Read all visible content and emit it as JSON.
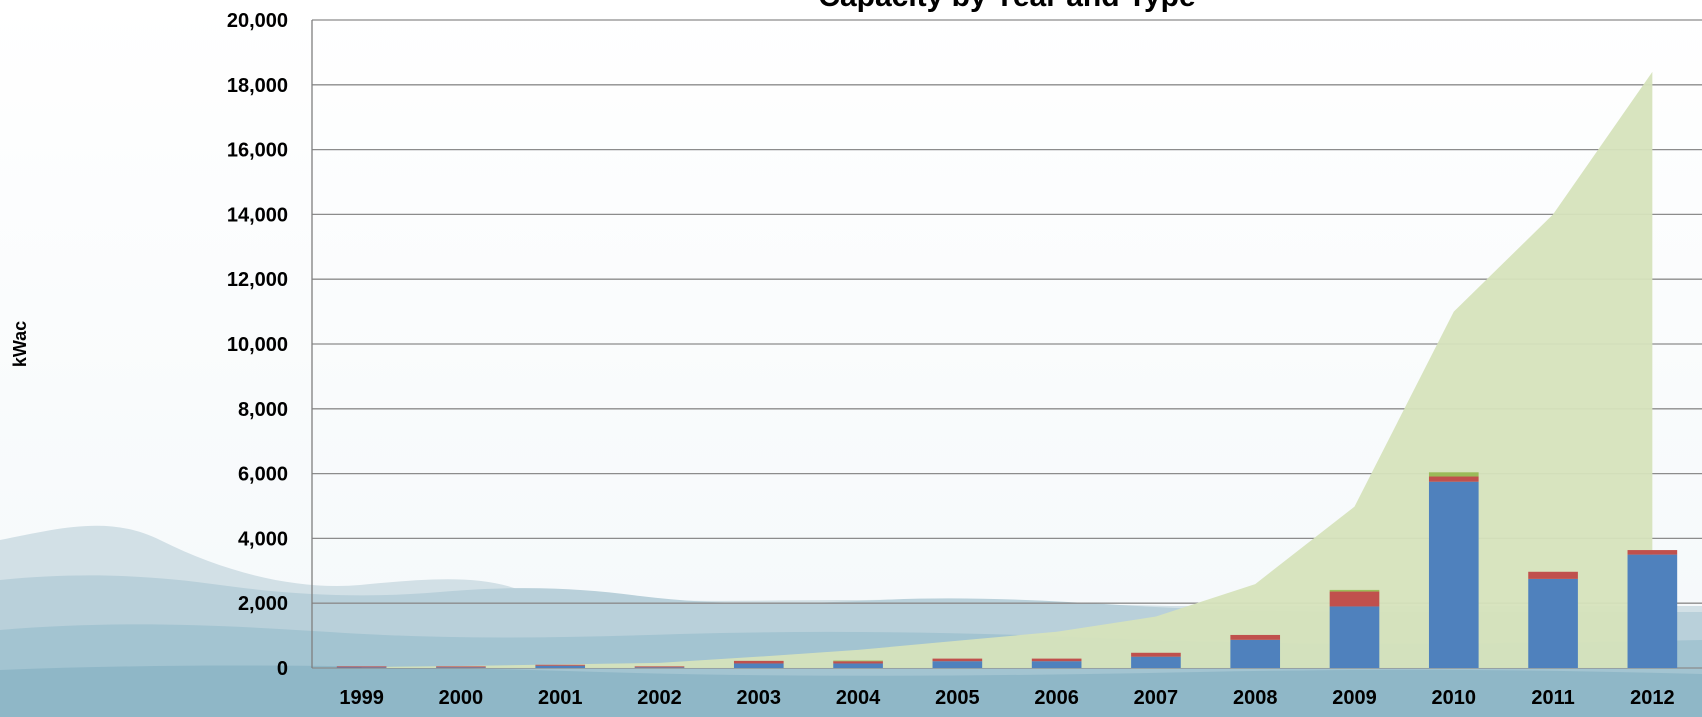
{
  "chart_data": {
    "type": "bar",
    "title": "Capacity by Year and Type",
    "xlabel": "",
    "ylabel": "kWac",
    "categories": [
      "1999",
      "2000",
      "2001",
      "2002",
      "2003",
      "2004",
      "2005",
      "2006",
      "2007",
      "2008",
      "2009",
      "2010",
      "2011",
      "2012"
    ],
    "y_ticks": [
      "0",
      "2,000",
      "4,000",
      "6,000",
      "8,000",
      "10,000",
      "12,000",
      "14,000",
      "16,000",
      "18,000",
      "20,000"
    ],
    "ylim": [
      0,
      20000
    ],
    "grid": true,
    "legend": "none",
    "series": [
      {
        "type": "area",
        "values": [
          30,
          60,
          110,
          160,
          350,
          560,
          840,
          1120,
          1590,
          2590,
          4980,
          11000,
          14000,
          18400
        ],
        "color": "#d6e3bc"
      },
      {
        "type": "bar",
        "values": [
          20,
          20,
          70,
          20,
          140,
          140,
          210,
          210,
          350,
          870,
          1900,
          5750,
          2750,
          3500
        ],
        "color": "#4f81bd"
      },
      {
        "type": "bar",
        "values": [
          30,
          30,
          30,
          30,
          80,
          70,
          80,
          80,
          120,
          150,
          460,
          160,
          220,
          140
        ],
        "color": "#c0504d"
      },
      {
        "type": "bar",
        "values": [
          0,
          0,
          0,
          0,
          0,
          20,
          0,
          0,
          0,
          0,
          50,
          130,
          0,
          0
        ],
        "color": "#9bbb59"
      }
    ]
  },
  "style": {
    "grid_color": "#8c8c8c",
    "axis_color": "#7f7f7f"
  }
}
